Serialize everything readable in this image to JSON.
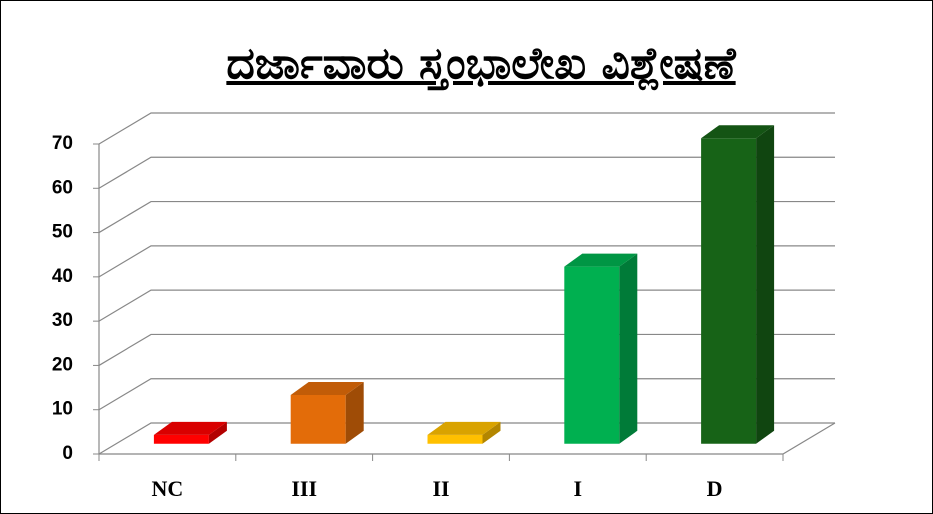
{
  "chart_data": {
    "type": "bar3d",
    "title": "ದರ್ಜಾವಾರು ಸ್ತಂಭಾಲೇಖ ವಿಶ್ಲೇಷಣೆ",
    "categories": [
      "NC",
      "III",
      "II",
      "I",
      "D"
    ],
    "values": [
      2,
      11,
      2,
      40,
      69
    ],
    "colors": [
      "#ff0000",
      "#e36c09",
      "#ffc000",
      "#00b050",
      "#176317"
    ],
    "ylim": [
      0,
      70
    ],
    "yticks": [
      0,
      10,
      20,
      30,
      40,
      50,
      60,
      70
    ],
    "grid": true
  }
}
